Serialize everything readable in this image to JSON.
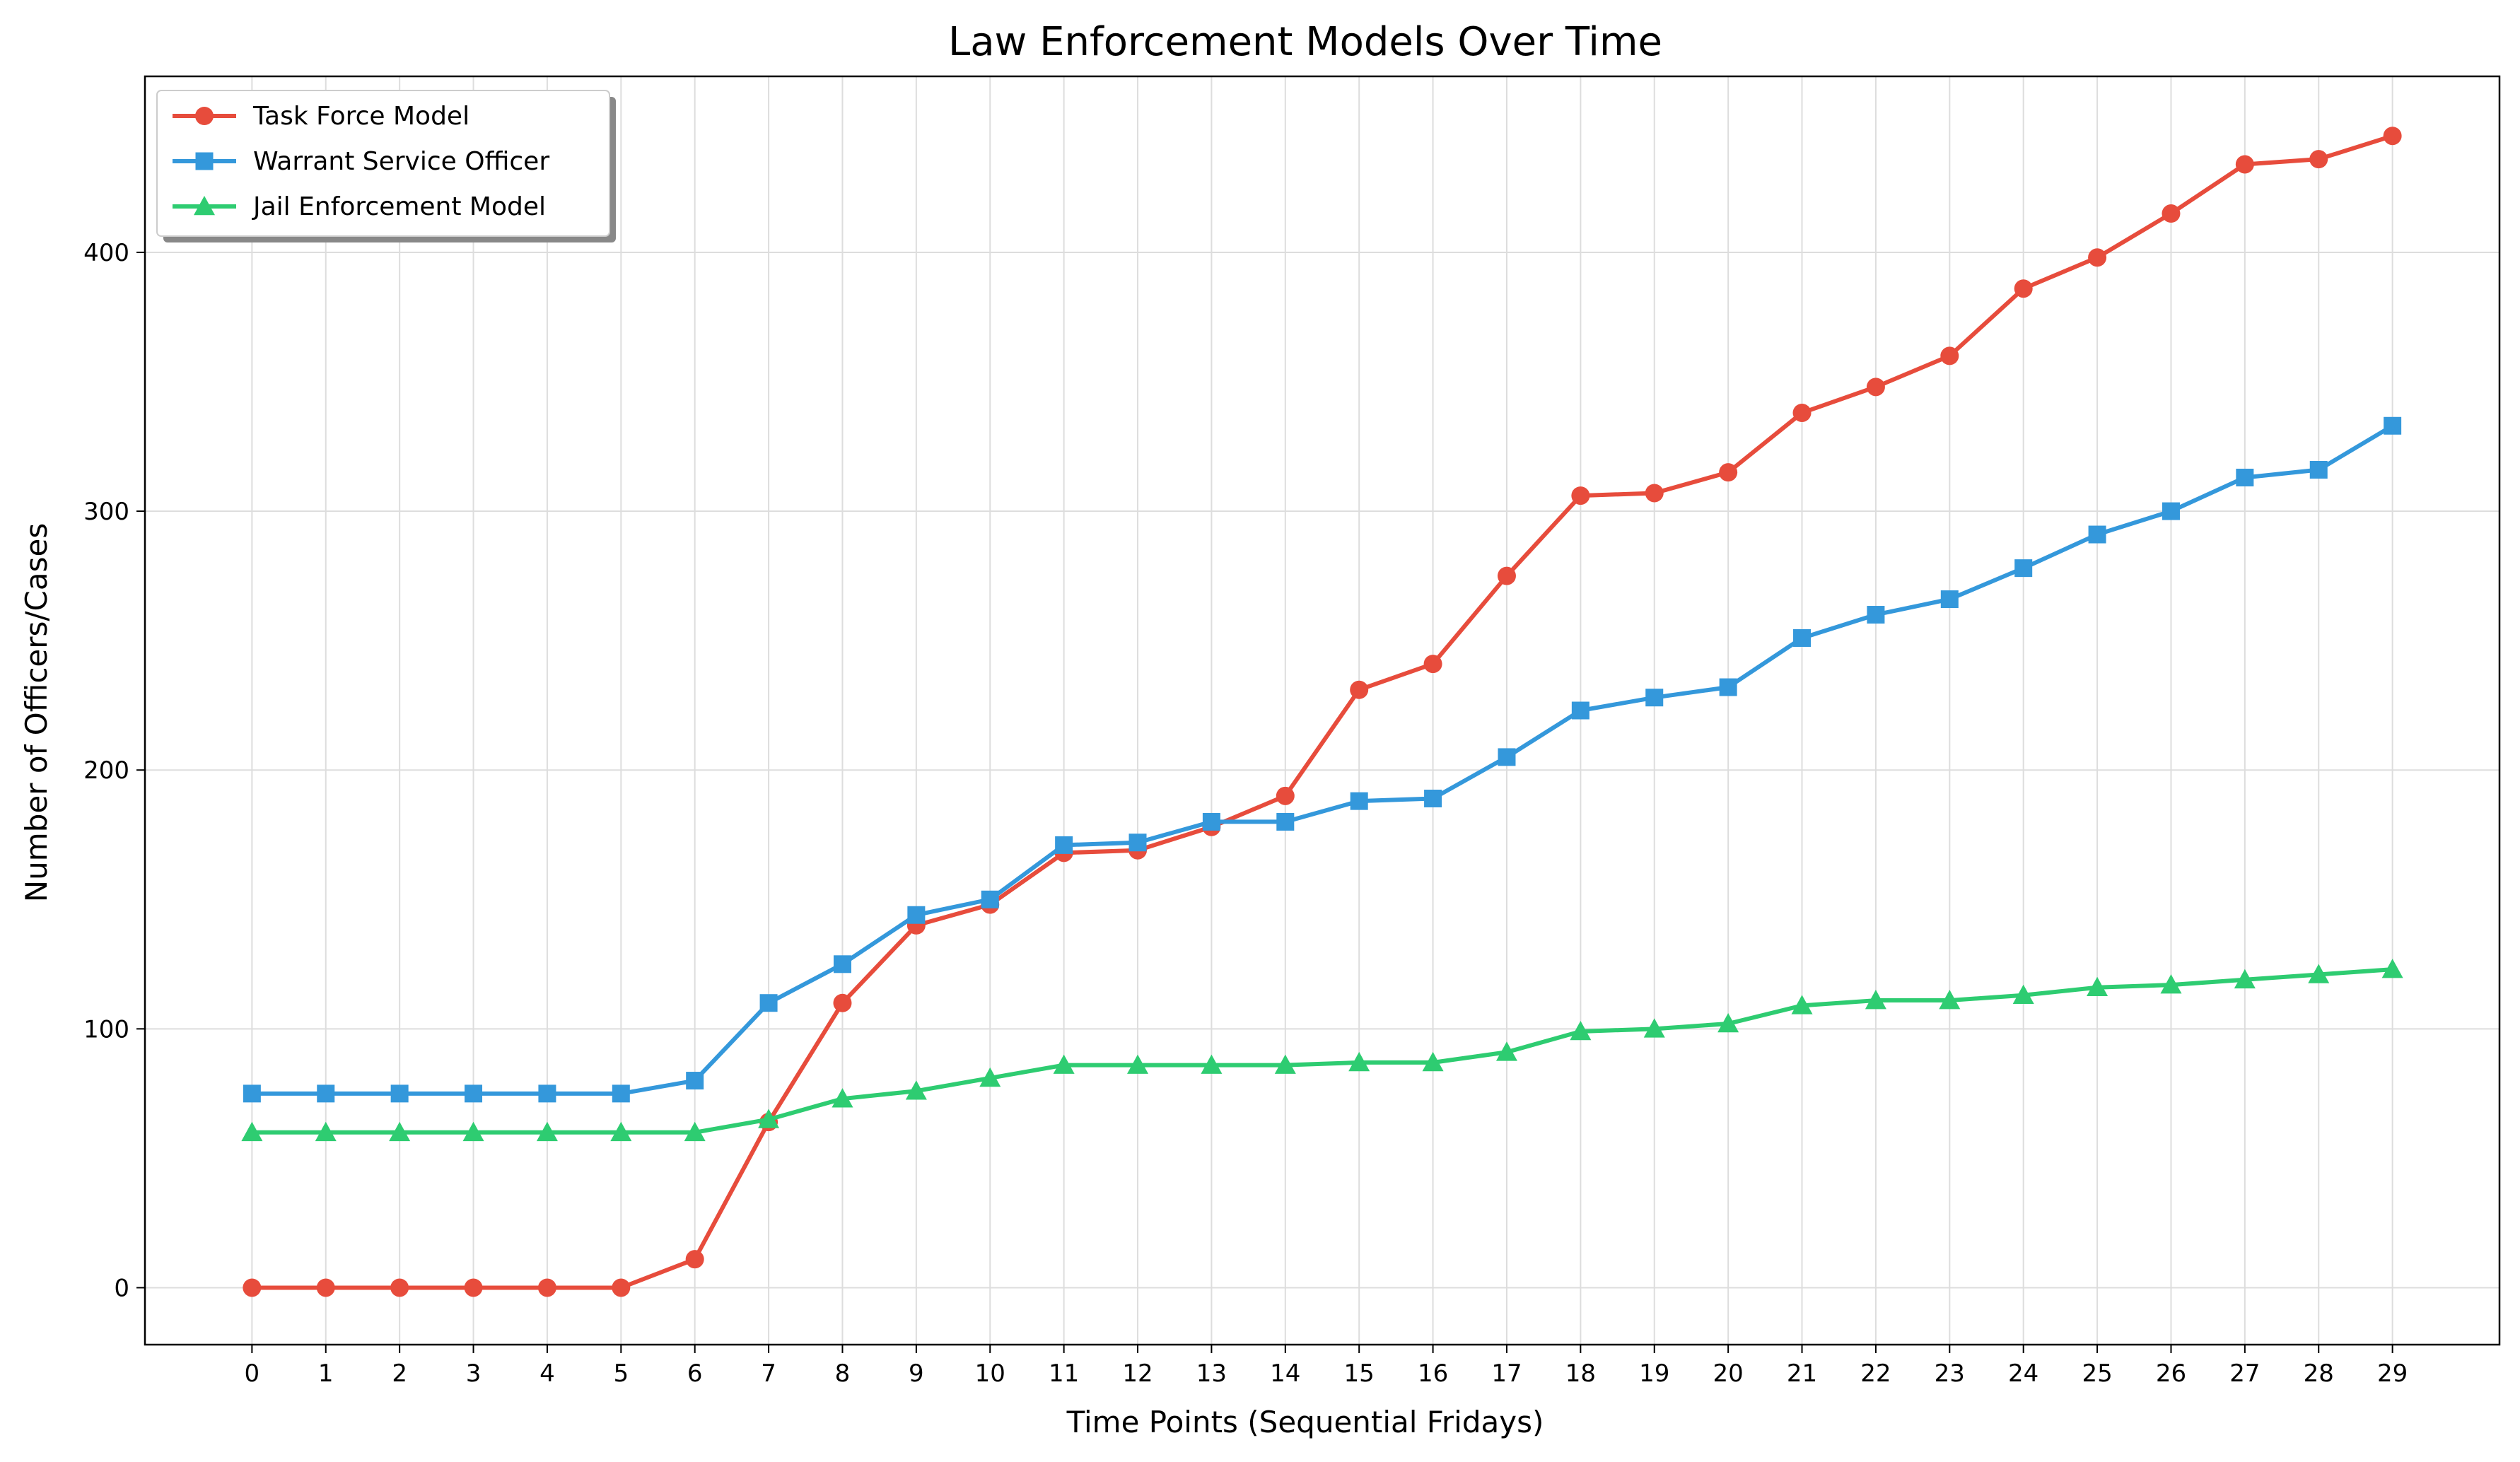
{
  "chart_data": {
    "type": "line",
    "title": "Law Enforcement Models Over Time",
    "xlabel": "Time Points (Sequential Fridays)",
    "ylabel": "Number of Officers/Cases",
    "x": [
      0,
      1,
      2,
      3,
      4,
      5,
      6,
      7,
      8,
      9,
      10,
      11,
      12,
      13,
      14,
      15,
      16,
      17,
      18,
      19,
      20,
      21,
      22,
      23,
      24,
      25,
      26,
      27,
      28,
      29
    ],
    "xlim": [
      -1.45,
      30.45
    ],
    "ylim": [
      -22,
      468
    ],
    "yticks": [
      0,
      100,
      200,
      300,
      400
    ],
    "grid": true,
    "legend_position": "top-left",
    "series": [
      {
        "name": "Task Force Model",
        "color": "#e74c3c",
        "marker": "circle",
        "values": [
          0,
          0,
          0,
          0,
          0,
          0,
          11,
          64,
          110,
          140,
          148,
          168,
          169,
          178,
          190,
          231,
          241,
          275,
          306,
          307,
          315,
          338,
          348,
          360,
          386,
          398,
          415,
          434,
          436,
          445
        ]
      },
      {
        "name": "Warrant Service Officer",
        "color": "#3498db",
        "marker": "square",
        "values": [
          75,
          75,
          75,
          75,
          75,
          75,
          80,
          110,
          125,
          144,
          150,
          171,
          172,
          180,
          180,
          188,
          189,
          205,
          223,
          228,
          232,
          251,
          260,
          266,
          278,
          291,
          300,
          313,
          316,
          333
        ]
      },
      {
        "name": "Jail Enforcement Model",
        "color": "#2ecc71",
        "marker": "triangle",
        "values": [
          60,
          60,
          60,
          60,
          60,
          60,
          60,
          65,
          73,
          76,
          81,
          86,
          86,
          86,
          86,
          87,
          87,
          91,
          99,
          100,
          102,
          109,
          111,
          111,
          113,
          116,
          117,
          119,
          121,
          123
        ]
      }
    ]
  }
}
